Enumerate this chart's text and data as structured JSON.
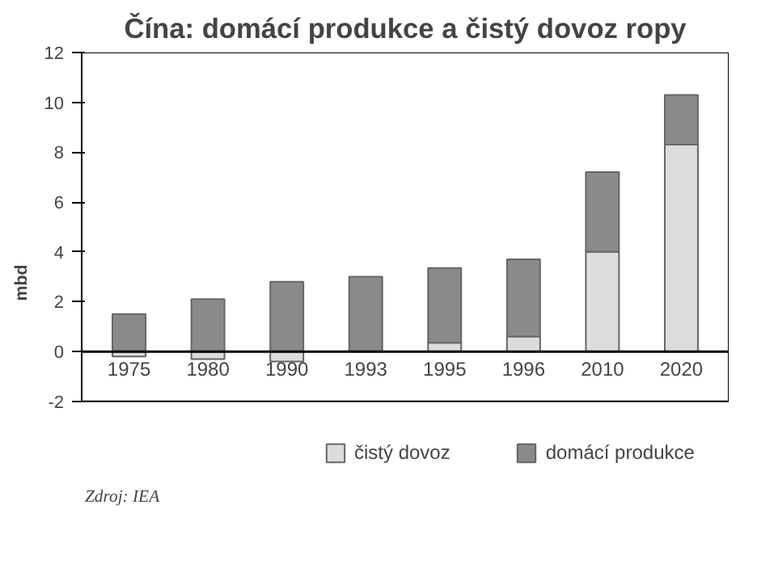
{
  "chart_data": {
    "type": "bar",
    "title": "Čína: domácí produkce a čistý dovoz ropy",
    "ylabel": "mbd",
    "categories": [
      "1975",
      "1980",
      "1990",
      "1993",
      "1995",
      "1996",
      "2010",
      "2020"
    ],
    "series": [
      {
        "name": "čistý dovoz",
        "color": "#dcdcdc",
        "values": [
          -0.2,
          -0.3,
          -0.4,
          null,
          0.35,
          0.6,
          4.0,
          8.3
        ]
      },
      {
        "name": "domácí produkce",
        "color": "#8a8a8a",
        "values": [
          1.5,
          2.1,
          2.8,
          3.0,
          3.0,
          3.1,
          3.2,
          2.0
        ]
      }
    ],
    "stacked": true,
    "ylim": [
      -2,
      12
    ],
    "yticks": [
      -2,
      0,
      2,
      4,
      6,
      8,
      10,
      12
    ],
    "grid": false,
    "legend": "bottom",
    "annotations": [
      "Zdroj: IEA"
    ]
  }
}
